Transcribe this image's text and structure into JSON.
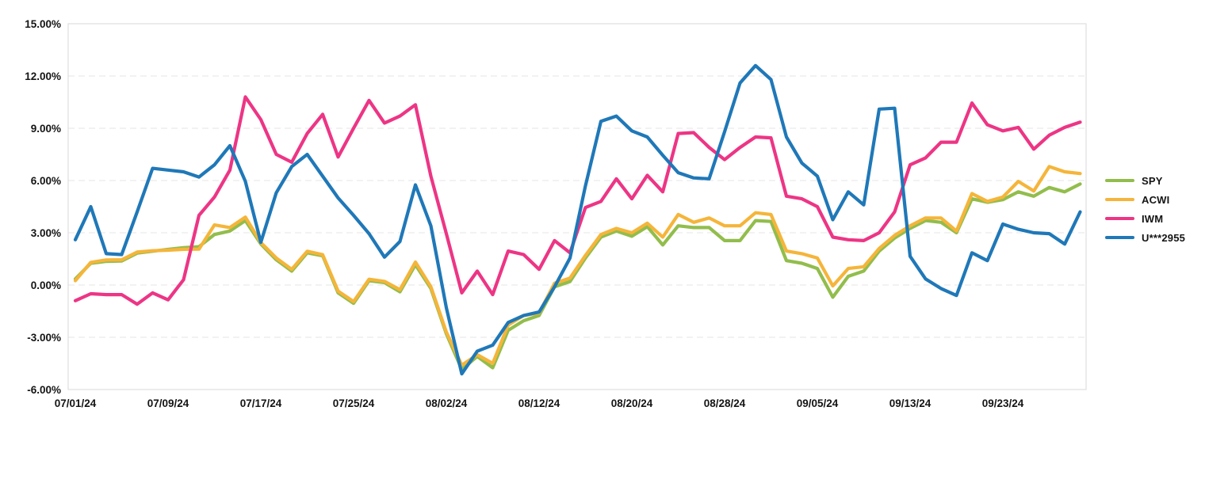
{
  "page": {
    "background": "#ffffff"
  },
  "chart_data": {
    "type": "line",
    "title": "",
    "xlabel": "",
    "ylabel": "",
    "y_unit": "%",
    "ylim": [
      -6,
      15
    ],
    "y_tick_step": 3,
    "y_ticks": [
      15,
      12,
      9,
      6,
      3,
      0,
      -3,
      -6
    ],
    "y_tick_labels": [
      "15.00%",
      "12.00%",
      "9.00%",
      "6.00%",
      "3.00%",
      "0.00%",
      "-3.00%",
      "-6.00%"
    ],
    "grid": "horizontal-dashed",
    "legend_position": "right",
    "x": [
      "07/01/24",
      "07/02/24",
      "07/03/24",
      "07/04/24",
      "07/05/24",
      "07/08/24",
      "07/09/24",
      "07/10/24",
      "07/11/24",
      "07/12/24",
      "07/15/24",
      "07/16/24",
      "07/17/24",
      "07/18/24",
      "07/19/24",
      "07/22/24",
      "07/23/24",
      "07/24/24",
      "07/25/24",
      "07/26/24",
      "07/29/24",
      "07/30/24",
      "07/31/24",
      "08/01/24",
      "08/02/24",
      "08/05/24",
      "08/06/24",
      "08/07/24",
      "08/08/24",
      "08/09/24",
      "08/12/24",
      "08/13/24",
      "08/14/24",
      "08/15/24",
      "08/16/24",
      "08/19/24",
      "08/20/24",
      "08/21/24",
      "08/22/24",
      "08/23/24",
      "08/26/24",
      "08/27/24",
      "08/28/24",
      "08/29/24",
      "08/30/24",
      "09/02/24",
      "09/03/24",
      "09/04/24",
      "09/05/24",
      "09/06/24",
      "09/09/24",
      "09/10/24",
      "09/11/24",
      "09/12/24",
      "09/13/24",
      "09/16/24",
      "09/17/24",
      "09/18/24",
      "09/19/24",
      "09/20/24",
      "09/23/24",
      "09/24/24",
      "09/25/24",
      "09/26/24",
      "09/27/24",
      "09/30/24"
    ],
    "x_tick_indices": [
      0,
      6,
      12,
      18,
      24,
      30,
      36,
      42,
      48,
      54,
      60
    ],
    "x_tick_labels": [
      "07/01/24",
      "07/09/24",
      "07/17/24",
      "07/25/24",
      "08/02/24",
      "08/12/24",
      "08/20/24",
      "08/28/24",
      "09/05/24",
      "09/13/24",
      "09/23/24"
    ],
    "series": [
      {
        "name": "SPY",
        "color": "#92bd4c",
        "values": [
          0.35,
          1.25,
          1.36,
          1.38,
          1.83,
          1.94,
          2.05,
          2.14,
          2.2,
          2.9,
          3.1,
          3.7,
          2.36,
          1.45,
          0.8,
          1.85,
          1.68,
          -0.45,
          -1.05,
          0.25,
          0.14,
          -0.39,
          1.17,
          -0.2,
          -2.8,
          -4.85,
          -4.1,
          -4.75,
          -2.6,
          -2.05,
          -1.75,
          -0.1,
          0.2,
          1.55,
          2.75,
          3.1,
          2.8,
          3.35,
          2.3,
          3.4,
          3.3,
          3.3,
          2.55,
          2.55,
          3.7,
          3.65,
          1.4,
          1.25,
          0.95,
          -0.7,
          0.5,
          0.8,
          1.95,
          2.7,
          3.25,
          3.7,
          3.6,
          3.0,
          4.95,
          4.75,
          4.9,
          5.35,
          5.1,
          5.6,
          5.35,
          5.8
        ]
      },
      {
        "name": "ACWI",
        "color": "#f5b53a",
        "values": [
          0.25,
          1.3,
          1.44,
          1.45,
          1.89,
          1.97,
          2.0,
          2.05,
          2.06,
          3.45,
          3.3,
          3.9,
          2.44,
          1.55,
          0.9,
          1.94,
          1.74,
          -0.35,
          -0.95,
          0.33,
          0.21,
          -0.27,
          1.32,
          -0.1,
          -2.7,
          -4.6,
          -4.0,
          -4.5,
          -2.3,
          -1.75,
          -1.6,
          0.1,
          0.4,
          1.7,
          2.9,
          3.25,
          3.0,
          3.55,
          2.75,
          4.05,
          3.6,
          3.85,
          3.4,
          3.4,
          4.15,
          4.05,
          1.95,
          1.8,
          1.55,
          -0.05,
          0.95,
          1.05,
          2.1,
          2.85,
          3.4,
          3.85,
          3.85,
          3.1,
          5.25,
          4.8,
          5.05,
          5.95,
          5.4,
          6.8,
          6.5,
          6.4
        ]
      },
      {
        "name": "IWM",
        "color": "#ed3585",
        "values": [
          -0.9,
          -0.5,
          -0.55,
          -0.55,
          -1.1,
          -0.45,
          -0.85,
          0.3,
          4.0,
          5.05,
          6.6,
          10.8,
          9.5,
          7.5,
          7.05,
          8.7,
          9.8,
          7.35,
          9.0,
          10.6,
          9.3,
          9.7,
          10.35,
          6.25,
          2.95,
          -0.45,
          0.8,
          -0.55,
          1.95,
          1.75,
          0.9,
          2.55,
          1.85,
          4.45,
          4.8,
          6.1,
          4.95,
          6.3,
          5.35,
          8.7,
          8.75,
          7.9,
          7.2,
          7.9,
          8.5,
          8.45,
          5.1,
          4.95,
          4.5,
          2.75,
          2.6,
          2.55,
          3.0,
          4.2,
          6.9,
          7.3,
          8.2,
          8.2,
          10.45,
          9.2,
          8.85,
          9.05,
          7.8,
          8.6,
          9.05,
          9.35
        ]
      },
      {
        "name": "U***2955",
        "color": "#1f78b8",
        "values": [
          2.6,
          4.5,
          1.8,
          1.75,
          4.2,
          6.7,
          6.6,
          6.5,
          6.2,
          6.9,
          8.0,
          5.95,
          2.45,
          5.3,
          6.8,
          7.5,
          6.25,
          5.0,
          4.0,
          2.95,
          1.6,
          2.5,
          5.75,
          3.4,
          -1.3,
          -5.1,
          -3.8,
          -3.45,
          -2.15,
          -1.75,
          -1.55,
          -0.1,
          1.55,
          5.7,
          9.4,
          9.7,
          8.85,
          8.5,
          7.45,
          6.45,
          6.15,
          6.1,
          8.8,
          11.6,
          12.6,
          11.8,
          8.5,
          7.0,
          6.25,
          3.75,
          5.35,
          4.6,
          10.1,
          10.15,
          1.65,
          0.35,
          -0.2,
          -0.6,
          1.85,
          1.4,
          3.5,
          3.2,
          3.0,
          2.95,
          2.35,
          4.2
        ]
      }
    ]
  }
}
